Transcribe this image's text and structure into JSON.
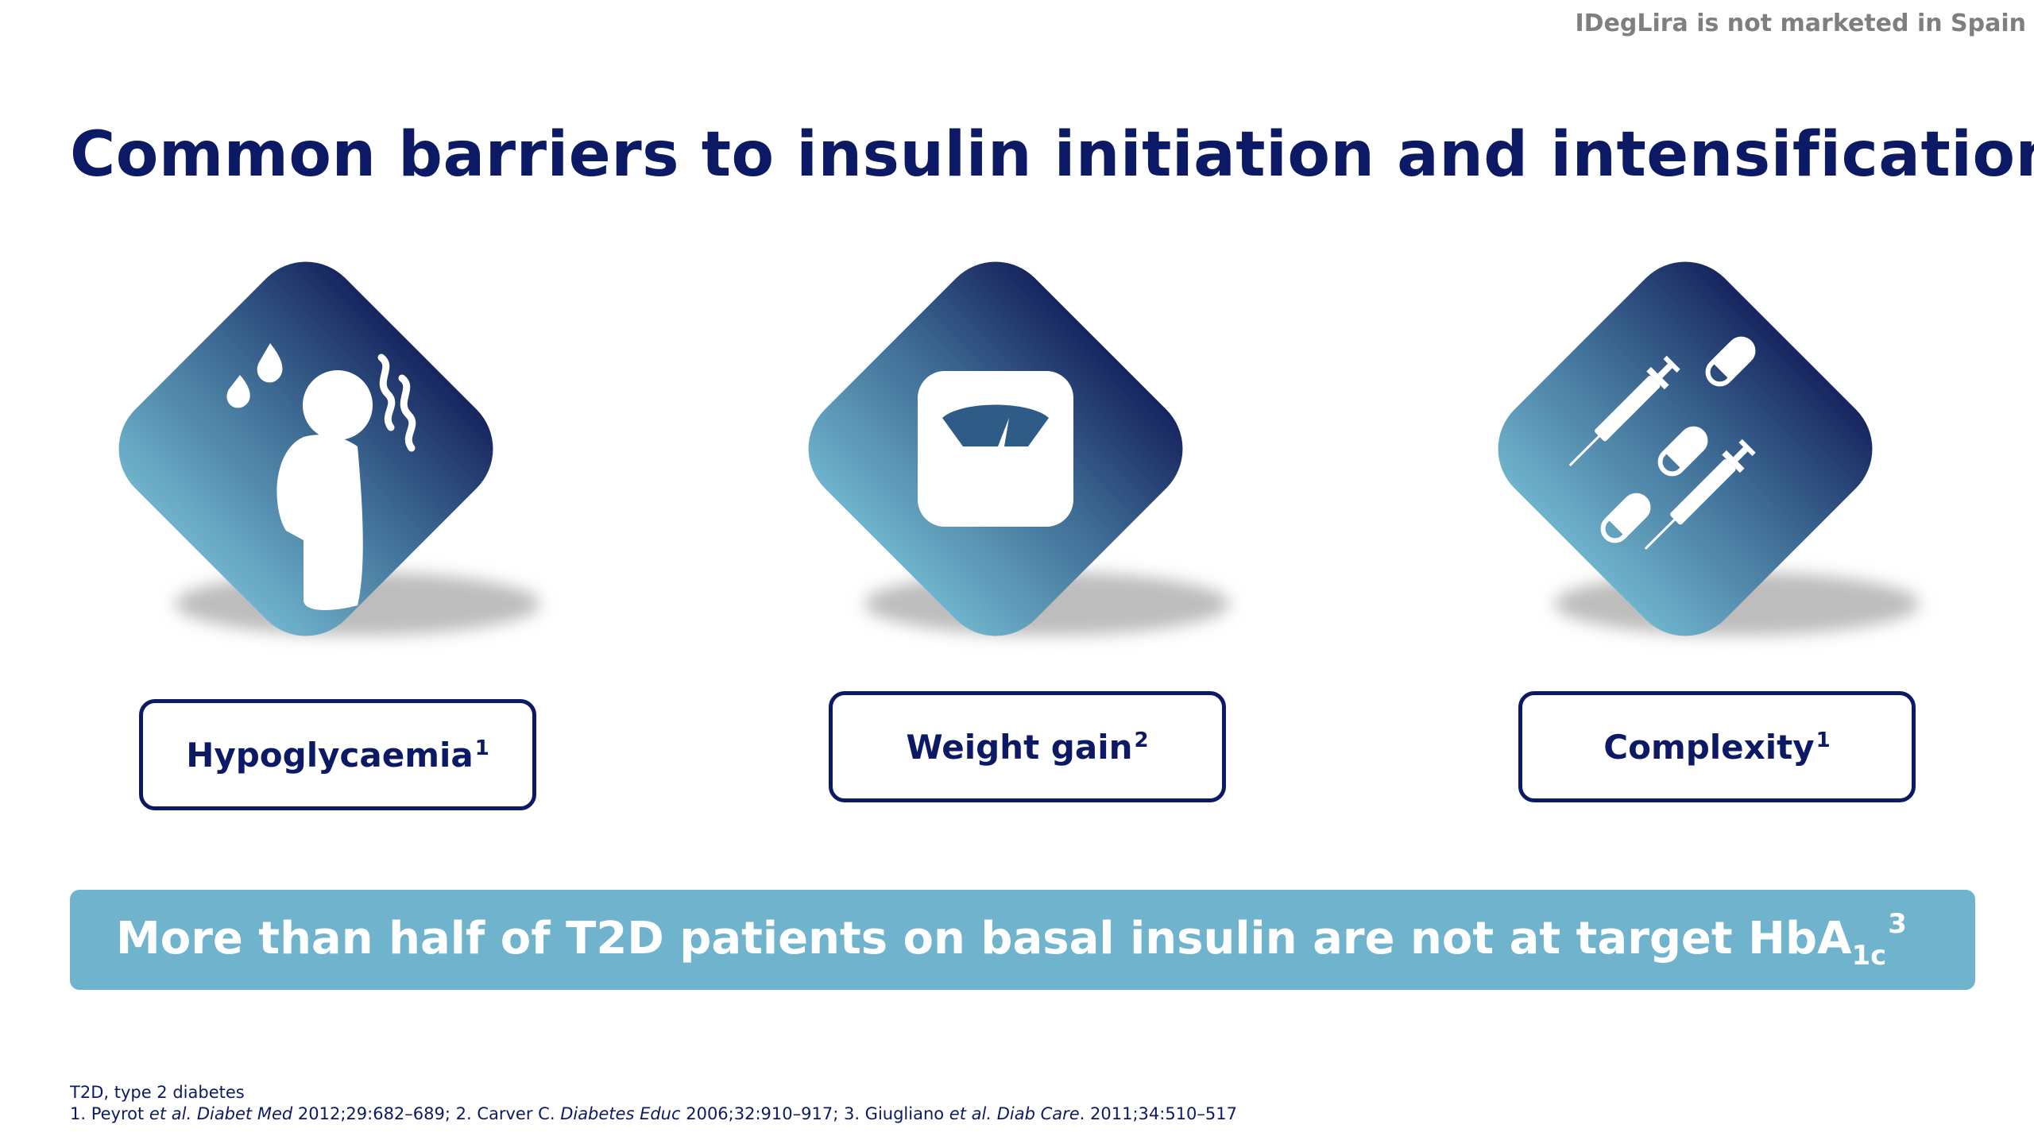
{
  "header": {
    "note": "IDegLira is not marketed in Spain",
    "title": "Common barriers to insulin initiation and intensification"
  },
  "colors": {
    "title": "#0c1a66",
    "tile_gradient_top": "#17255f",
    "tile_gradient_bottom": "#6fb3cc",
    "banner": "#6fb3cc",
    "note": "#7f7f7f"
  },
  "barriers": [
    {
      "icon": "sweating-person-icon",
      "label": "Hypoglycaemia",
      "ref": "1"
    },
    {
      "icon": "weighing-scale-icon",
      "label": "Weight gain",
      "ref": "2"
    },
    {
      "icon": "syringes-and-pills-icon",
      "label": "Complexity",
      "ref": "1"
    }
  ],
  "banner": {
    "text": "More than half of T2D patients on basal insulin are not at target HbA",
    "subscript": "1c",
    "ref": "3"
  },
  "footnotes": {
    "abbreviation": "T2D, type 2 diabetes",
    "ref1_prefix": "1. Peyrot ",
    "ref1_etal": "et al.",
    "ref1_space": " ",
    "ref1_journal": "Diabet Med",
    "ref1_rest": " 2012;29:682–689; ",
    "ref2_prefix": "2. Carver C. ",
    "ref2_journal": "Diabetes Educ",
    "ref2_rest": " 2006;32:910–917; ",
    "ref3_prefix": "3. Giugliano ",
    "ref3_etal": "et al.",
    "ref3_space": " ",
    "ref3_journal": "Diab Care",
    "ref3_rest": ". 2011;34:510–517"
  }
}
